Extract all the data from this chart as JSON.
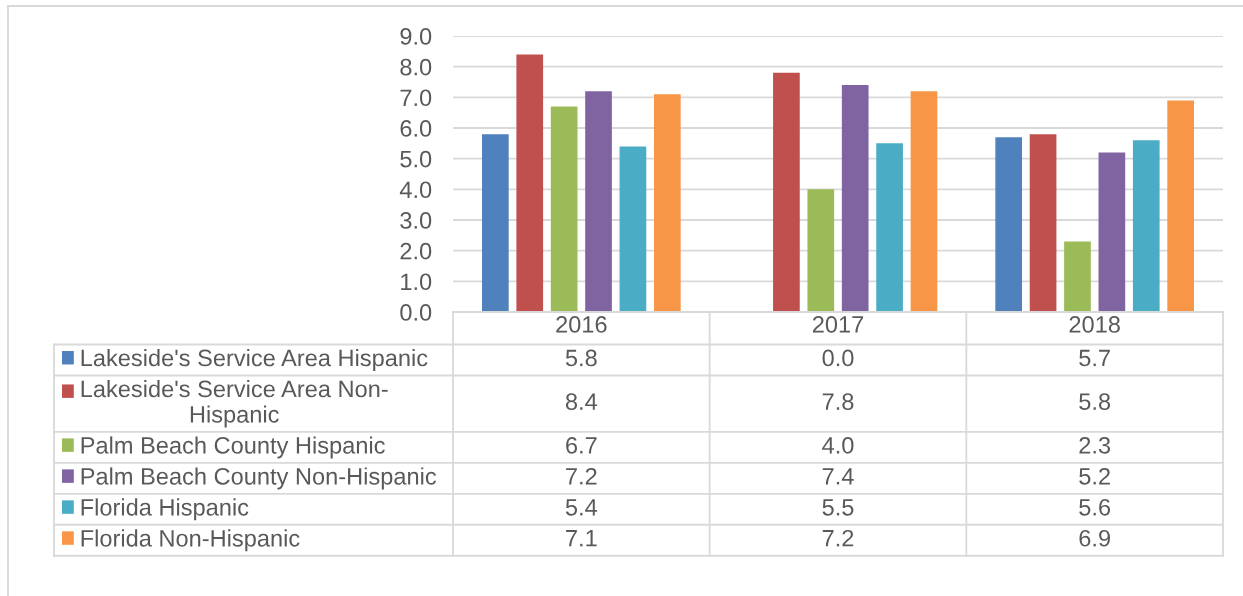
{
  "chart_data": {
    "type": "bar",
    "categories": [
      "2016",
      "2017",
      "2018"
    ],
    "series": [
      {
        "name": "Lakeside's Service Area Hispanic",
        "color": "#4f81bd",
        "values": [
          5.8,
          0.0,
          5.7
        ],
        "value_labels": [
          "5.8",
          "0.0",
          "5.7"
        ]
      },
      {
        "name": "Lakeside's Service Area Non-Hispanic",
        "color": "#c0504d",
        "values": [
          8.4,
          7.8,
          5.8
        ],
        "value_labels": [
          "8.4",
          "7.8",
          "5.8"
        ]
      },
      {
        "name": "Palm Beach County Hispanic",
        "color": "#9bbb59",
        "values": [
          6.7,
          4.0,
          2.3
        ],
        "value_labels": [
          "6.7",
          "4.0",
          "2.3"
        ]
      },
      {
        "name": "Palm Beach County Non-Hispanic",
        "color": "#8064a2",
        "values": [
          7.2,
          7.4,
          5.2
        ],
        "value_labels": [
          "7.2",
          "7.4",
          "5.2"
        ]
      },
      {
        "name": "Florida Hispanic",
        "color": "#4bacc6",
        "values": [
          5.4,
          5.5,
          5.6
        ],
        "value_labels": [
          "5.4",
          "5.5",
          "5.6"
        ]
      },
      {
        "name": "Florida Non-Hispanic",
        "color": "#f79646",
        "values": [
          7.1,
          7.2,
          6.9
        ],
        "value_labels": [
          "7.1",
          "7.2",
          "6.9"
        ]
      }
    ],
    "ylim": [
      0,
      9
    ],
    "yticks": [
      {
        "value": 0,
        "label": "0.0"
      },
      {
        "value": 1,
        "label": "1.0"
      },
      {
        "value": 2,
        "label": "2.0"
      },
      {
        "value": 3,
        "label": "3.0"
      },
      {
        "value": 4,
        "label": "4.0"
      },
      {
        "value": 5,
        "label": "5.0"
      },
      {
        "value": 6,
        "label": "6.0"
      },
      {
        "value": 7,
        "label": "7.0"
      },
      {
        "value": 8,
        "label": "8.0"
      },
      {
        "value": 9,
        "label": "9.0"
      }
    ],
    "grid": "y",
    "legend": "bottom"
  }
}
